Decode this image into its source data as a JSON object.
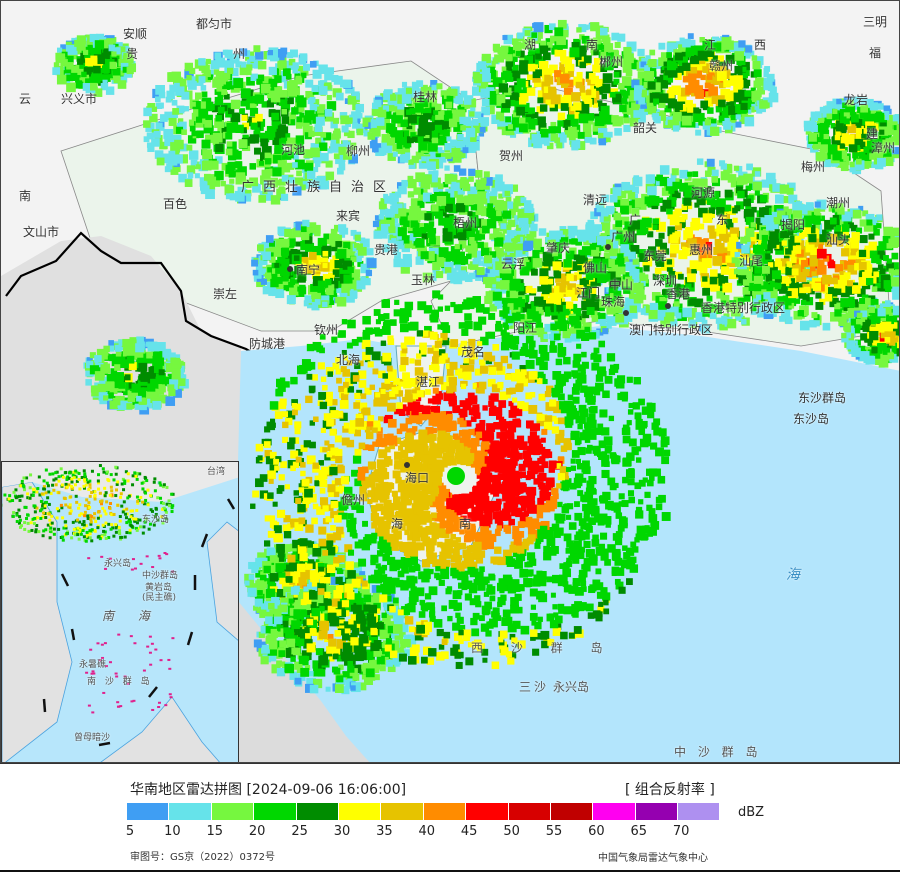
{
  "title": "华南地区雷达拼图 [2024-09-06 16:06:00]",
  "product": "[ 组合反射率 ]",
  "unit": "dBZ",
  "legend": {
    "ticks": [
      "5",
      "10",
      "15",
      "20",
      "25",
      "30",
      "35",
      "40",
      "45",
      "50",
      "55",
      "60",
      "65",
      "70"
    ],
    "colors": [
      "#3f9ef3",
      "#66e3ea",
      "#76f73f",
      "#00d700",
      "#008c00",
      "#ffff00",
      "#e6c300",
      "#ff8c00",
      "#ff0000",
      "#d70000",
      "#c00000",
      "#ff00f0",
      "#9500b0",
      "#ae90f0"
    ]
  },
  "approval_number": "审图号：GS京（2022）0372号",
  "organization": "中国气象局雷达气象中心",
  "map_labels": {
    "anshun": "安顺",
    "duyun": "都匀市",
    "gui": "贵",
    "zhou": "州",
    "yun": "云",
    "xingyi": "兴义市",
    "hechi": "河池",
    "guangxi": "广西壮族自治区",
    "baise": "百色",
    "nan_yn": "南",
    "wenshan": "文山市",
    "laibin": "来宾",
    "guilin": "桂林",
    "liuzhou": "柳州",
    "guigang": "贵港",
    "nanning": "南宁",
    "yulin": "玉林",
    "chongzuo": "崇左",
    "qinzhou": "钦州",
    "fangchenggang": "防城港",
    "beihai": "北海",
    "hu": "湖",
    "nan_hn": "南",
    "chenzhou": "郴州",
    "jiang": "江",
    "xi": "西",
    "ganzhou": "赣州",
    "sanming": "三明",
    "fu": "福",
    "longyan": "龙岩",
    "shaoguan": "韶关",
    "hezhou": "贺州",
    "jian": "建",
    "meizhou": "梅州",
    "zhangzhou": "漳州",
    "qingyuan": "清远",
    "heyuan": "河源",
    "chaozhou": "潮州",
    "guang": "广",
    "dong": "东",
    "jieyang": "揭阳",
    "shantou": "汕头",
    "wuzhou": "梧州",
    "zhaoqing": "肇庆",
    "guangzhou": "广州",
    "huizhou": "惠州",
    "yunfu": "云浮",
    "foshan": "佛山",
    "dongguan": "东莞",
    "shanwei": "汕尾",
    "shenzhen": "深圳",
    "zhongshan": "中山",
    "jiangmen": "江门",
    "zhuhai": "珠海",
    "hongkong": "香港",
    "hksar": "香港特别行政区",
    "macaosar": "澳门特别行政区",
    "yangjiang": "阳江",
    "maoming": "茂名",
    "zhanjiang": "湛江",
    "dongsha_islands": "东沙群岛",
    "dongsha_island": "东沙岛",
    "haikou": "海口",
    "danzhou": "儋州",
    "hai": "海",
    "nan_hi": "南",
    "sea_hai": "海",
    "xisha": "西 沙 群 岛",
    "sansha": "三沙",
    "yongxing": "永兴岛",
    "zhongsha": "中 沙 群 岛"
  },
  "inset_labels": {
    "taiwan": "台湾",
    "dongsha": "东沙岛",
    "yongxing": "永兴岛",
    "zhongsha": "中沙群岛",
    "huangyan": "黄岩岛",
    "minzhu": "(民主礁)",
    "nanhai": "南 海",
    "yongshu": "永暑礁",
    "nansha": "南 沙 群 岛",
    "zengmu": "曾母暗沙"
  }
}
